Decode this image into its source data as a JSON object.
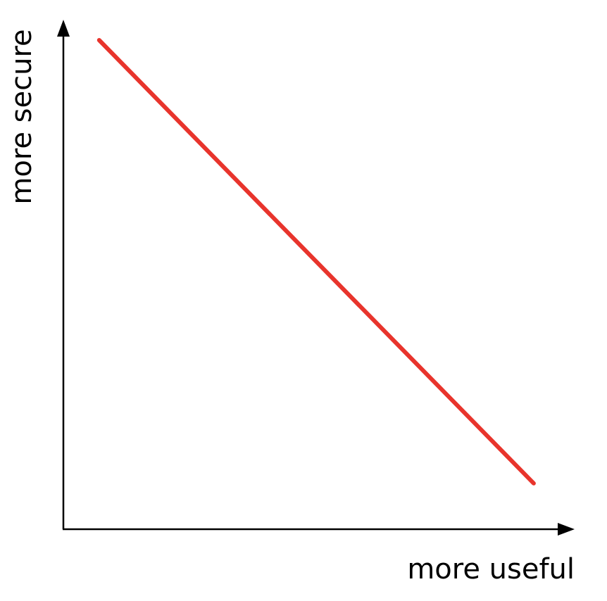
{
  "chart_data": {
    "type": "line",
    "title": "",
    "xlabel": "more useful",
    "ylabel": "more secure",
    "xlim": [
      0,
      1
    ],
    "ylim": [
      0,
      1
    ],
    "grid": false,
    "ticks": false,
    "series": [
      {
        "color": "#e8342c",
        "points": [
          {
            "x": 0.07,
            "y": 0.96
          },
          {
            "x": 0.92,
            "y": 0.09
          }
        ]
      }
    ]
  },
  "colors": {
    "axis": "#000000",
    "line": "#e8342c",
    "background": "#ffffff"
  }
}
